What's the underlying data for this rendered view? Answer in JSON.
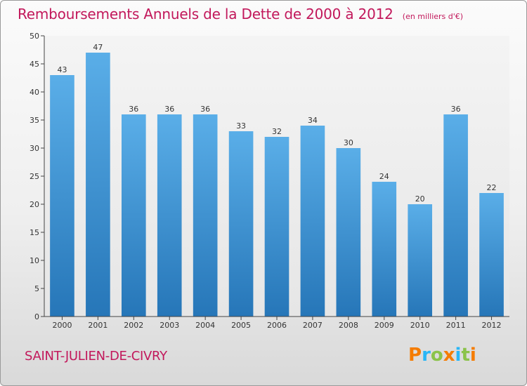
{
  "header": {
    "title": "Remboursements Annuels de la Dette de 2000 à 2012",
    "unit": "(en milliers d'€)"
  },
  "footer": {
    "commune": "SAINT-JULIEN-DE-CIVRY",
    "brand_letters": [
      "P",
      "r",
      "o",
      "x",
      "i",
      "t",
      "i"
    ],
    "brand_colors": [
      "#f57c00",
      "#29b6f6",
      "#8bc34a",
      "#f57c00",
      "#29b6f6",
      "#8bc34a",
      "#f57c00"
    ]
  },
  "colors": {
    "bar_top": "#5aaee8",
    "bar_bottom": "#2676b8",
    "title": "#c2185b"
  },
  "chart_data": {
    "type": "bar",
    "title": "Remboursements Annuels de la Dette de 2000 à 2012",
    "subtitle": "(en milliers d'€)",
    "xlabel": "",
    "ylabel": "",
    "categories": [
      "2000",
      "2001",
      "2002",
      "2003",
      "2004",
      "2005",
      "2006",
      "2007",
      "2008",
      "2009",
      "2010",
      "2011",
      "2012"
    ],
    "values": [
      43,
      47,
      36,
      36,
      36,
      33,
      32,
      34,
      30,
      24,
      20,
      36,
      22
    ],
    "ylim": [
      0,
      50
    ],
    "yticks": [
      0,
      5,
      10,
      15,
      20,
      25,
      30,
      35,
      40,
      45,
      50
    ],
    "grid": false,
    "legend": "none"
  }
}
